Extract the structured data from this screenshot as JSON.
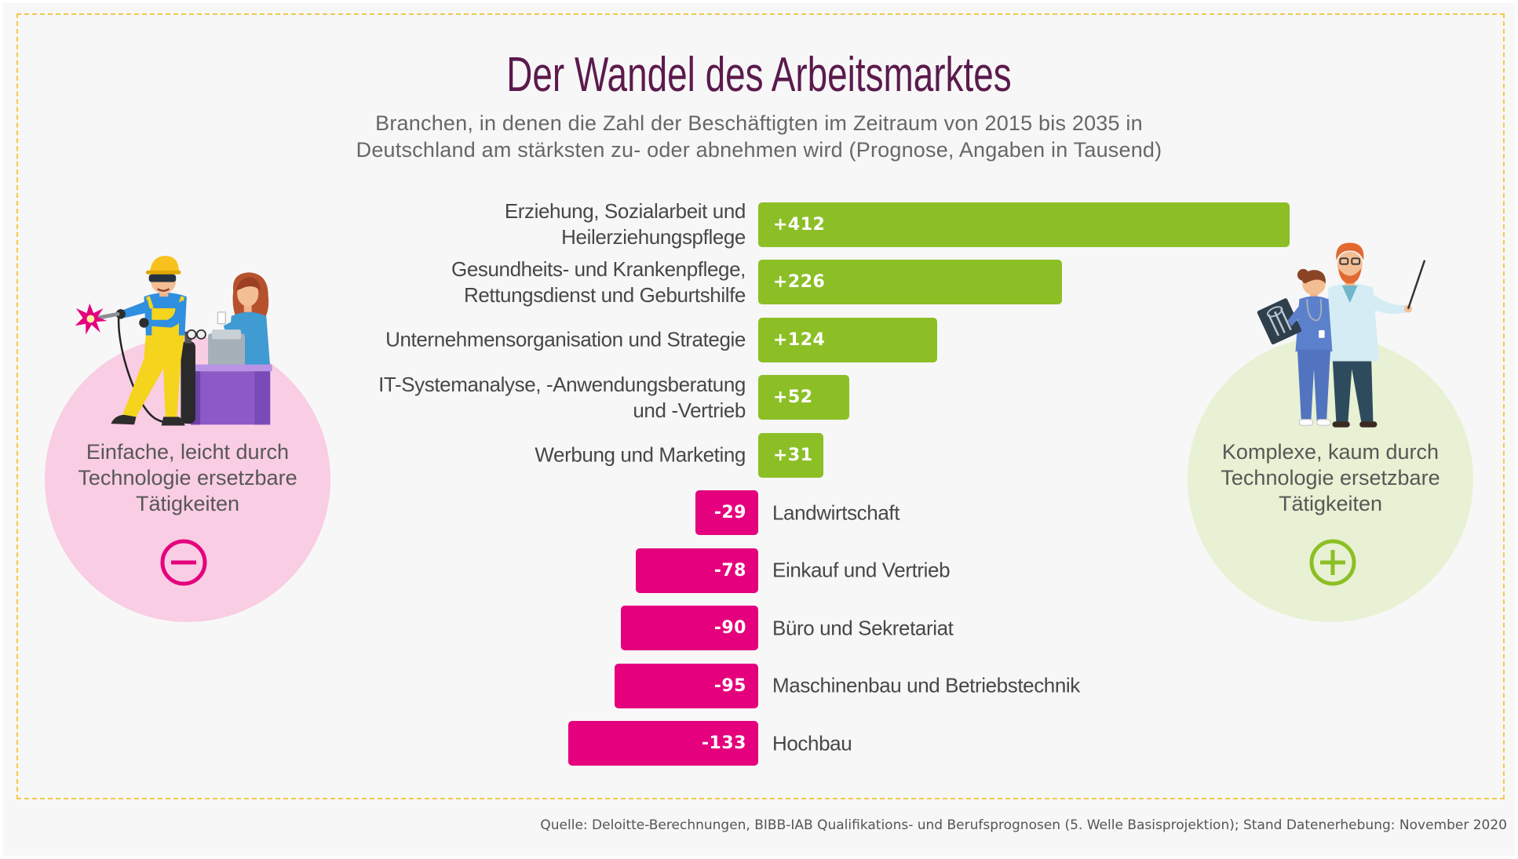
{
  "chart_data": {
    "type": "bar",
    "orientation": "horizontal",
    "title": "Der Wandel des Arbeitsmarktes",
    "subtitle": "Branchen, in denen die Zahl der Beschäftigten im Zeitraum von 2015 bis 2035 in\nDeutschland am stärksten zu- oder abnehmen wird (Prognose, Angaben in Tausend)",
    "categories": [
      "Erziehung, Sozialarbeit und\nHeilerziehungspflege",
      "Gesundheits- und Krankenpflege,\nRettungsdienst und Geburtshilfe",
      "Unternehmensorganisation und Strategie",
      "IT-Systemanalyse, -Anwendungsberatung\nund -Vertrieb",
      "Werbung und Marketing",
      "Landwirtschaft",
      "Einkauf und Vertrieb",
      "Büro und Sekretariat",
      "Maschinenbau und Betriebstechnik",
      "Hochbau"
    ],
    "values": [
      412,
      226,
      124,
      52,
      31,
      -29,
      -78,
      -90,
      -95,
      -133
    ],
    "data_labels_signed": true,
    "grid": false,
    "legend": false
  },
  "panels": {
    "left": {
      "text": "Einfache, leicht durch\nTechnologie ersetzbare\nTätigkeiten",
      "icon": "minus-circle-icon",
      "illustration": "welder-and-clerk-illustration"
    },
    "right": {
      "text": "Komplexe, kaum durch\nTechnologie ersetzbare\nTätigkeiten",
      "icon": "plus-circle-icon",
      "illustration": "doctors-illustration"
    }
  },
  "source": "Quelle: Deloitte-Berechnungen, BIBB-IAB Qualifikations- und Berufsprognosen (5. Welle Basisprojektion); Stand Datenerhebung: November 2020",
  "colors": {
    "positive": "#8cbf26",
    "negative": "#e5007d",
    "title": "#5b1a4c",
    "left_circle": "#f9cde3",
    "right_circle": "#e8f1d3",
    "frame": "#f2c94c"
  }
}
